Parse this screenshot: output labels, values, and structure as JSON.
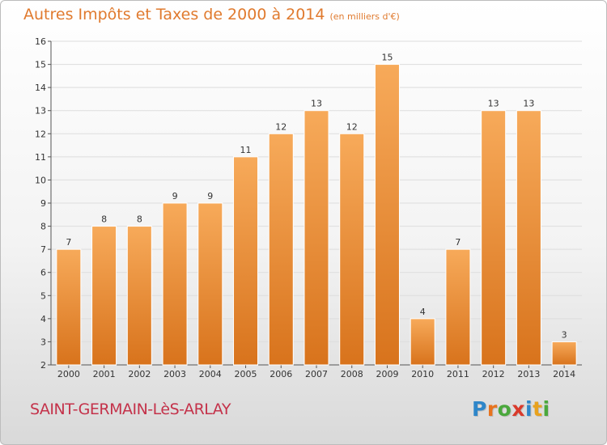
{
  "header": {
    "title": "Autres Impôts et Taxes de 2000 à 2014",
    "unit": "(en milliers d'€)"
  },
  "footer": {
    "commune": "SAINT-GERMAIN-LèS-ARLAY",
    "logo_letters": [
      "P",
      "r",
      "o",
      "x",
      "i",
      "t",
      "i"
    ],
    "logo_colors": [
      "#2e86c9",
      "#e8731e",
      "#4aa83c",
      "#d93a2b",
      "#2e86c9",
      "#e8a21e",
      "#4aa83c"
    ]
  },
  "colors": {
    "bar_light": "#f7aa5a",
    "bar_dark": "#d8731c",
    "axis": "#555555",
    "grid": "#dddddd",
    "title": "#e07a2e",
    "commune": "#c4324a"
  },
  "chart_data": {
    "type": "bar",
    "title": "Autres Impôts et Taxes de 2000 à 2014",
    "xlabel": "",
    "ylabel": "",
    "categories": [
      "2000",
      "2001",
      "2002",
      "2003",
      "2004",
      "2005",
      "2006",
      "2007",
      "2008",
      "2009",
      "2010",
      "2011",
      "2012",
      "2013",
      "2014"
    ],
    "values": [
      7,
      8,
      8,
      9,
      9,
      11,
      12,
      13,
      12,
      15,
      4,
      7,
      13,
      13,
      3
    ],
    "ylim": [
      2,
      16
    ],
    "yticks": [
      2,
      3,
      4,
      5,
      6,
      7,
      8,
      9,
      10,
      11,
      12,
      13,
      14,
      15,
      16
    ],
    "grid": true,
    "data_labels": true
  }
}
